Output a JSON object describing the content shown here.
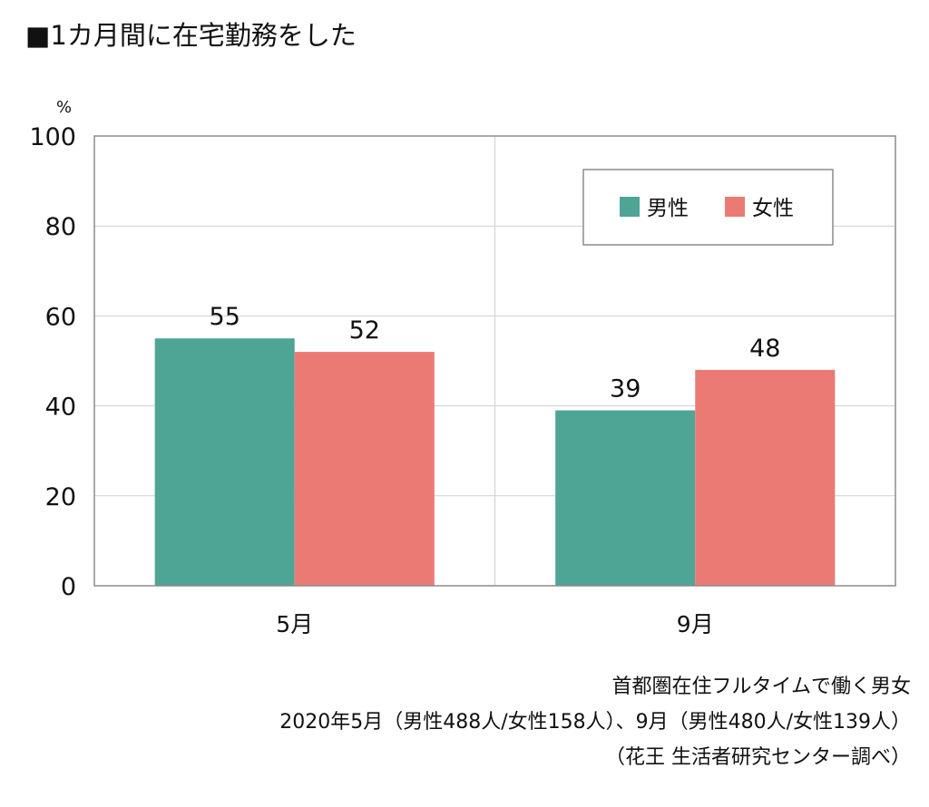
{
  "title": "■1カ月間に在宅勤務をした",
  "chart_data": {
    "type": "bar",
    "ylabel": "%",
    "ylim": [
      0,
      100
    ],
    "yticks": [
      0,
      20,
      40,
      60,
      80,
      100
    ],
    "categories": [
      "5月",
      "9月"
    ],
    "series": [
      {
        "name": "男性",
        "color": "#4fa595",
        "values": [
          55,
          39
        ]
      },
      {
        "name": "女性",
        "color": "#ec7a74",
        "values": [
          52,
          48
        ]
      }
    ],
    "grid": true,
    "legend_position": "top-right"
  },
  "note": {
    "line1": "首都圏在住フルタイムで働く男女",
    "line2": "2020年5月（男性488人/女性158人）、9月（男性480人/女性139人）",
    "line3": "（花王 生活者研究センター調べ）"
  }
}
